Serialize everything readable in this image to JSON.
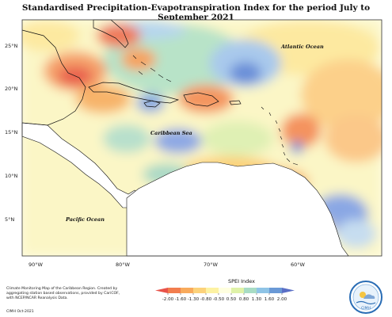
{
  "title": "Standardised Precipitation-Evapotranspiration Index for the period July to September 2021",
  "map": {
    "lat_ticks": [
      "25°N",
      "20°N",
      "15°N",
      "10°N",
      "5°N"
    ],
    "lon_ticks": [
      "90°W",
      "80°W",
      "70°W",
      "60°W"
    ],
    "labels": {
      "atlantic": "Atlantic Ocean",
      "caribbean": "Caribbean Sea",
      "pacific": "Pacific Ocean"
    }
  },
  "legend": {
    "title": "SPEI Index",
    "ticks": [
      "-2.00",
      "-1.60",
      "-1.30",
      "-0.80",
      "-0.50",
      "0.50",
      "0.80",
      "1.30",
      "1.60",
      "2.00"
    ],
    "colors": [
      "#e8534a",
      "#f27d4e",
      "#f8aa5c",
      "#fcd27a",
      "#fdf2a2",
      "#ffffe0",
      "#dff2a8",
      "#a8dcc4",
      "#8fc4e6",
      "#6a99d6",
      "#5a6fc6"
    ]
  },
  "credit": {
    "text": "Climate Monitoring Map of the Caribbean Region. Created by aggregating station based observations, provided by CariCOF, with NCEP/NCAR Reanalysis Data.",
    "date": "CIMH Oct-2021"
  },
  "logo": {
    "label": "CIMH",
    "icon": "cimh-logo-icon"
  }
}
